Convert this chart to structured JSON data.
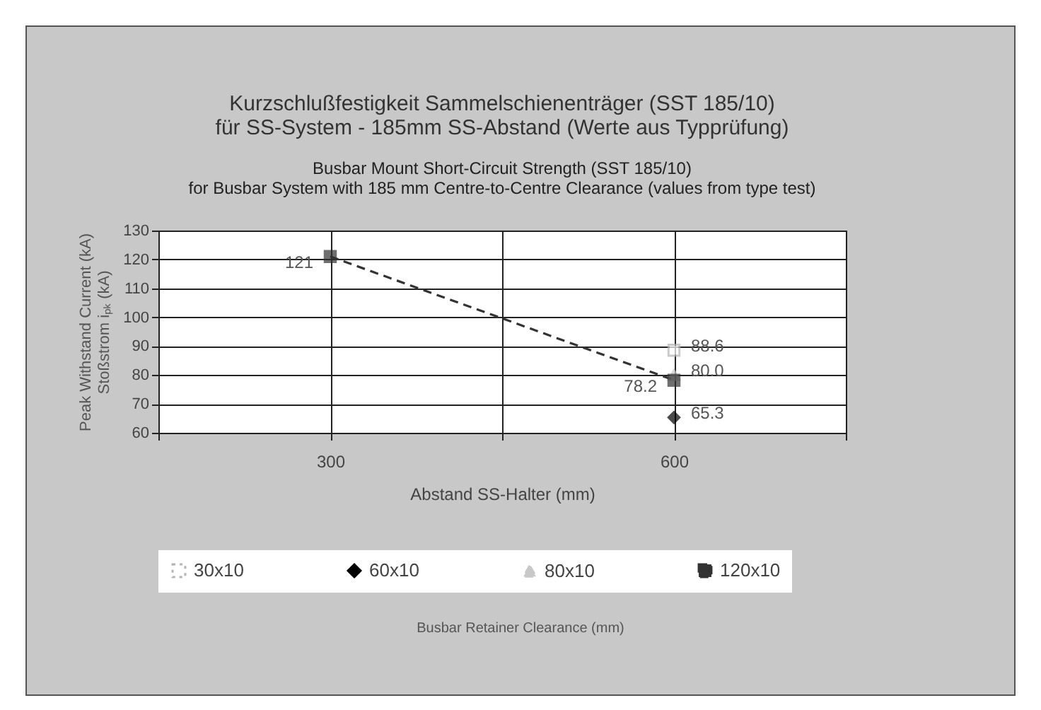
{
  "chart_data": {
    "type": "line",
    "title": "Kurzschlußfestigkeit Sammelschienenträger (SST 185/10)\nfür SS-System - 185mm SS-Abstand (Werte aus Typprüfung)",
    "subtitle": "Busbar Mount Short-Circuit Strength (SST 185/10)\nfor Busbar System with 185 mm Centre-to-Centre Clearance (values from type test)",
    "xlabel": "Abstand SS-Halter (mm)",
    "ylabel": "Peak Withstand Current (kA)\nStoßstrom iₚₖ (kA)",
    "annotations": [
      "Busbar Retainer Clearance (mm)"
    ],
    "x": [
      300,
      600
    ],
    "xlim": [
      150,
      750
    ],
    "xticks": [
      {
        "value": 150,
        "label": null
      },
      300,
      {
        "value": 450,
        "label": null
      },
      600,
      {
        "value": 750,
        "label": null
      }
    ],
    "ylim": [
      60,
      130
    ],
    "yticks": [
      60,
      70,
      80,
      90,
      100,
      110,
      120,
      130
    ],
    "grid": true,
    "legend": "bottom",
    "series": [
      {
        "name": "30x10",
        "color": "#b4b4b4",
        "marker": "square",
        "line_style": "dotted",
        "values": [
          null,
          88.6
        ],
        "value_labels": [
          null,
          "88.6"
        ]
      },
      {
        "name": "60x10",
        "color": "#000000",
        "marker": "diamond",
        "line_style": "solid",
        "values": [
          null,
          65.3
        ],
        "value_labels": [
          null,
          "65.3"
        ]
      },
      {
        "name": "80x10",
        "color": "#c8c8c8",
        "marker": "triangle",
        "line_style": "dashed",
        "values": [
          null,
          80.0
        ],
        "value_labels": [
          null,
          "80.0"
        ]
      },
      {
        "name": "120x10",
        "color": "#333333",
        "marker": "square",
        "line_style": "dashed",
        "values": [
          121,
          78.2
        ],
        "value_labels": [
          "121",
          "78.2"
        ]
      }
    ]
  }
}
